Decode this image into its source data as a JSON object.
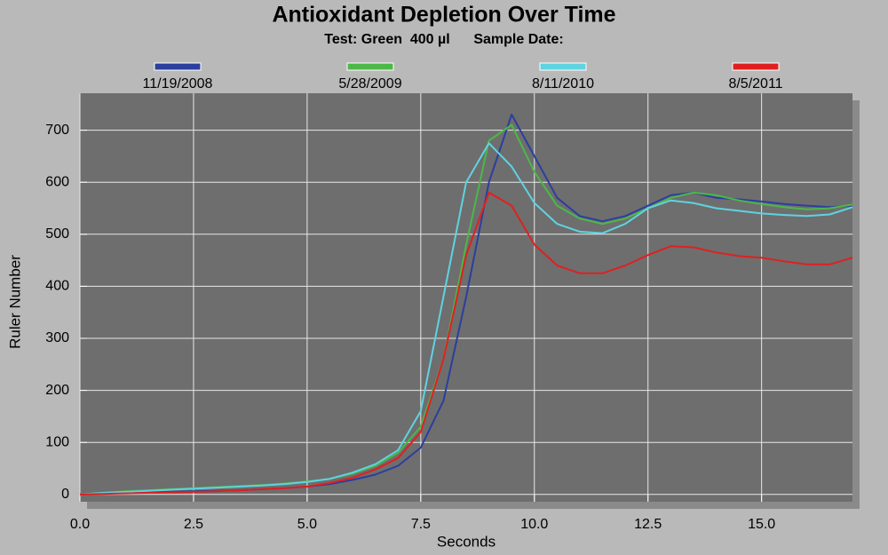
{
  "chart_data": {
    "type": "line",
    "title": "Antioxidant Depletion Over Time",
    "subtitle": "Test: Green  400 µl      Sample Date:",
    "xlabel": "Seconds",
    "ylabel": "Ruler Number",
    "x": [
      0,
      0.5,
      1,
      1.5,
      2,
      2.5,
      3,
      3.5,
      4,
      4.5,
      5,
      5.5,
      6,
      6.5,
      7,
      7.5,
      8,
      8.5,
      9,
      9.5,
      10,
      10.5,
      11,
      11.5,
      12,
      12.5,
      13,
      13.5,
      14,
      14.5,
      15,
      15.5,
      16,
      16.5,
      17
    ],
    "series": [
      {
        "name": "11/19/2008",
        "color": "#2b3f9e",
        "values": [
          0,
          2,
          3,
          4,
          5,
          6,
          7,
          8,
          10,
          12,
          15,
          20,
          28,
          38,
          55,
          90,
          180,
          380,
          600,
          730,
          650,
          570,
          535,
          525,
          535,
          555,
          575,
          580,
          570,
          567,
          563,
          558,
          555,
          552,
          555
        ]
      },
      {
        "name": "5/28/2009",
        "color": "#4cb848",
        "values": [
          0,
          3,
          6,
          8,
          10,
          12,
          14,
          16,
          18,
          21,
          25,
          30,
          40,
          55,
          80,
          130,
          260,
          480,
          680,
          710,
          620,
          555,
          530,
          520,
          530,
          550,
          570,
          580,
          575,
          565,
          558,
          552,
          548,
          550,
          557
        ]
      },
      {
        "name": "8/11/2010",
        "color": "#5fd3e0",
        "values": [
          0,
          3,
          5,
          7,
          9,
          11,
          13,
          15,
          17,
          20,
          24,
          30,
          42,
          58,
          85,
          160,
          380,
          600,
          675,
          630,
          560,
          520,
          505,
          502,
          520,
          550,
          565,
          560,
          550,
          545,
          540,
          537,
          535,
          538,
          552
        ]
      },
      {
        "name": "8/5/2011",
        "color": "#e02020",
        "values": [
          0,
          1,
          2,
          3,
          4,
          5,
          6,
          8,
          10,
          12,
          15,
          22,
          32,
          48,
          70,
          120,
          260,
          460,
          580,
          555,
          480,
          440,
          425,
          425,
          440,
          460,
          477,
          475,
          465,
          458,
          455,
          448,
          442,
          442,
          455
        ]
      }
    ],
    "xlim": [
      0,
      17
    ],
    "ylim": [
      -14,
      771
    ],
    "xticks": [
      {
        "value": 0,
        "label": "0.0"
      },
      {
        "value": 2.5,
        "label": "2.5"
      },
      {
        "value": 5,
        "label": "5.0"
      },
      {
        "value": 7.5,
        "label": "7.5"
      },
      {
        "value": 10,
        "label": "10.0"
      },
      {
        "value": 12.5,
        "label": "12.5"
      },
      {
        "value": 15,
        "label": "15.0"
      }
    ],
    "yticks": [
      0,
      100,
      200,
      300,
      400,
      500,
      600,
      700
    ],
    "grid": true,
    "legend": "top"
  }
}
